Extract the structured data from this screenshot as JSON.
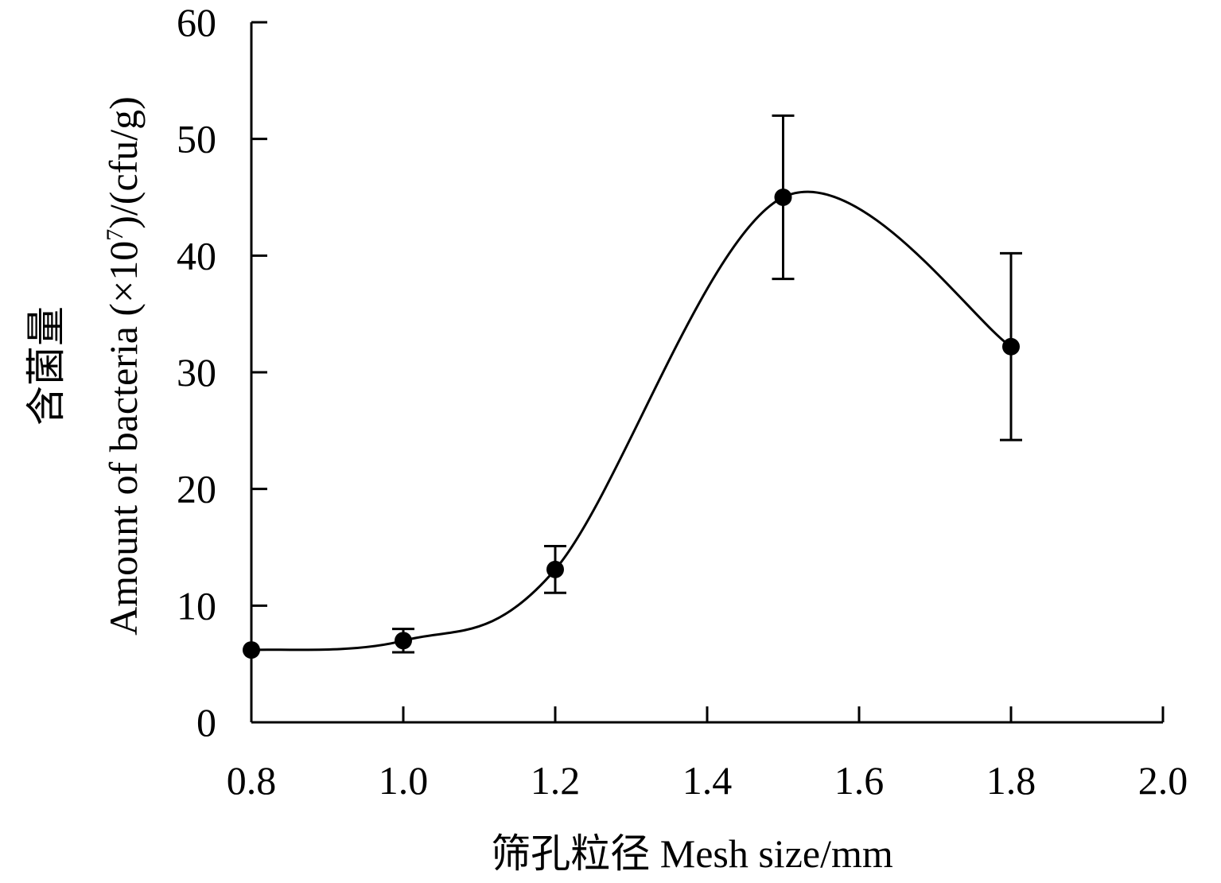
{
  "chart_data": {
    "type": "scatter",
    "title": "",
    "xlabel": "筛孔粒径 Mesh size/mm",
    "ylabel": {
      "cn": "含菌量",
      "before_sup": "Amount of bacteria (×10",
      "sup": "7",
      "after_sup": ")/(cfu/g)"
    },
    "xlim": [
      0.8,
      2.0
    ],
    "ylim": [
      0,
      60
    ],
    "x_ticks": [
      "0.8",
      "1.0",
      "1.2",
      "1.4",
      "1.6",
      "1.8",
      "2.0"
    ],
    "y_ticks": [
      "0",
      "10",
      "20",
      "30",
      "40",
      "50",
      "60"
    ],
    "grid": false,
    "legend": "none",
    "series": [
      {
        "x": [
          0.8,
          1.0,
          1.2,
          1.5,
          1.8
        ],
        "y": [
          6.2,
          7.0,
          13.1,
          45.0,
          32.2
        ],
        "error": [
          0.0,
          1.0,
          2.0,
          7.0,
          8.0
        ],
        "curve_fit": "smooth",
        "color": "#000000"
      }
    ]
  }
}
